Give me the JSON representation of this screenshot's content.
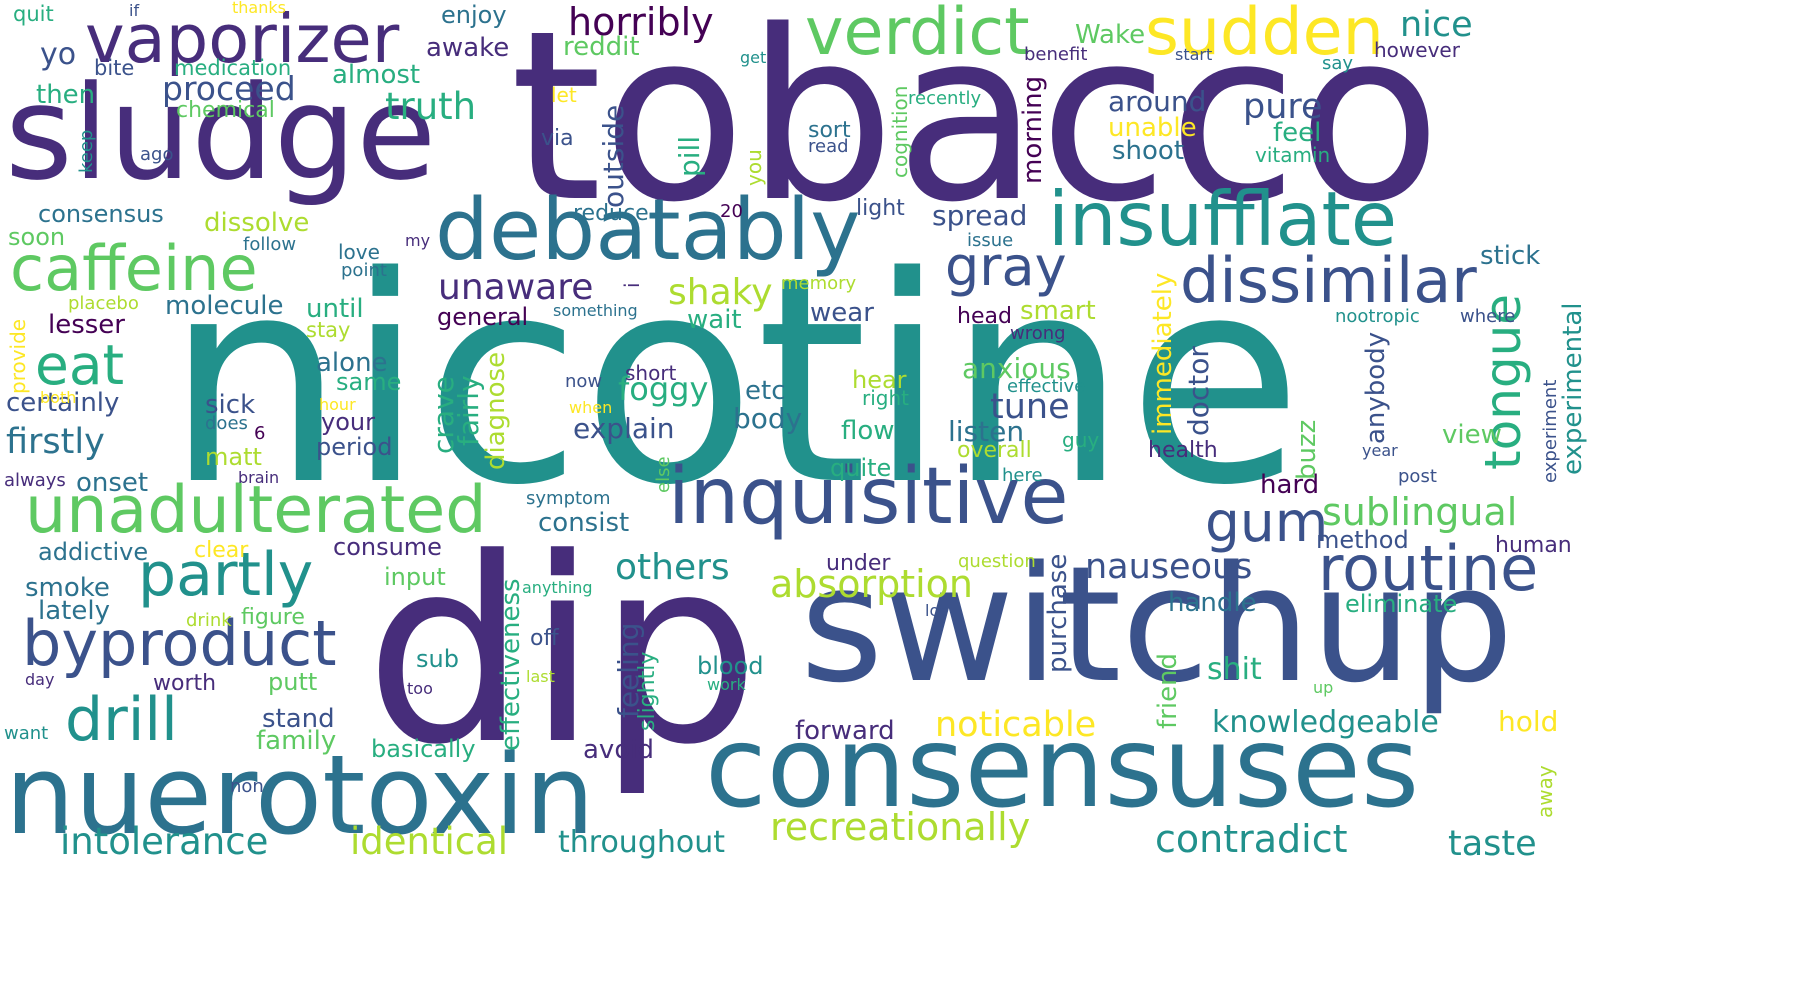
{
  "palette": {
    "c1": "#440154",
    "c2": "#472d7b",
    "c3": "#3b528b",
    "c4": "#2c728e",
    "c5": "#21918c",
    "c6": "#28ae80",
    "c7": "#5ec962",
    "c8": "#addc30",
    "c9": "#fde725"
  },
  "words": [
    {
      "text": "tobacco",
      "color": "c2"
    },
    {
      "text": "nicotine",
      "color": "c5"
    },
    {
      "text": "dip",
      "color": "c2"
    },
    {
      "text": "switchup",
      "color": "c3"
    },
    {
      "text": "consensuses",
      "color": "c4"
    },
    {
      "text": "nuerotoxin",
      "color": "c4"
    },
    {
      "text": "sludge",
      "color": "c2"
    },
    {
      "text": "debatably",
      "color": "c4"
    },
    {
      "text": "vaporizer",
      "color": "c2"
    },
    {
      "text": "inquisitive",
      "color": "c3"
    },
    {
      "text": "insufflate",
      "color": "c5"
    },
    {
      "text": "unadulterated",
      "color": "c7"
    },
    {
      "text": "verdict",
      "color": "c7"
    },
    {
      "text": "sudden",
      "color": "c9"
    },
    {
      "text": "caffeine",
      "color": "c7"
    },
    {
      "text": "dissimilar",
      "color": "c3"
    },
    {
      "text": "routine",
      "color": "c3"
    },
    {
      "text": "byproduct",
      "color": "c3"
    },
    {
      "text": "partly",
      "color": "c5"
    },
    {
      "text": "drill",
      "color": "c5"
    },
    {
      "text": "tongue",
      "color": "c6"
    },
    {
      "text": "gum",
      "color": "c3"
    },
    {
      "text": "gray",
      "color": "c3"
    },
    {
      "text": "eat",
      "color": "c6"
    },
    {
      "text": "recreationally",
      "color": "c8"
    },
    {
      "text": "absorption",
      "color": "c8"
    },
    {
      "text": "contradict",
      "color": "c5"
    },
    {
      "text": "sublingual",
      "color": "c7"
    },
    {
      "text": "identical",
      "color": "c8"
    },
    {
      "text": "intolerance",
      "color": "c5"
    },
    {
      "text": "horribly",
      "color": "c1"
    },
    {
      "text": "unaware",
      "color": "c2"
    },
    {
      "text": "shaky",
      "color": "c8"
    },
    {
      "text": "others",
      "color": "c5"
    },
    {
      "text": "nauseous",
      "color": "c3"
    },
    {
      "text": "noticable",
      "color": "c9"
    },
    {
      "text": "taste",
      "color": "c5"
    },
    {
      "text": "knowledgeable",
      "color": "c5"
    },
    {
      "text": "throughout",
      "color": "c5"
    },
    {
      "text": "truth",
      "color": "c6"
    },
    {
      "text": "proceed",
      "color": "c3"
    },
    {
      "text": "pure",
      "color": "c3"
    },
    {
      "text": "nice",
      "color": "c5"
    },
    {
      "text": "firstly",
      "color": "c4"
    },
    {
      "text": "experimental",
      "color": "c5"
    },
    {
      "text": "tune",
      "color": "c3"
    },
    {
      "text": "certainly",
      "color": "c3"
    },
    {
      "text": "explain",
      "color": "c3"
    },
    {
      "text": "lesser",
      "color": "c1"
    },
    {
      "text": "molecule",
      "color": "c4"
    },
    {
      "text": "spread",
      "color": "c3"
    },
    {
      "text": "anxious",
      "color": "c7"
    },
    {
      "text": "listen",
      "color": "c4"
    },
    {
      "text": "foggy",
      "color": "c6"
    },
    {
      "text": "body",
      "color": "c4"
    },
    {
      "text": "handle",
      "color": "c4"
    },
    {
      "text": "eliminate",
      "color": "c6"
    },
    {
      "text": "consume",
      "color": "c2"
    },
    {
      "text": "consist",
      "color": "c4"
    },
    {
      "text": "smoke",
      "color": "c4"
    },
    {
      "text": "lately",
      "color": "c4"
    },
    {
      "text": "addictive",
      "color": "c4"
    },
    {
      "text": "onset",
      "color": "c4"
    },
    {
      "text": "consensus",
      "color": "c4"
    },
    {
      "text": "dissolve",
      "color": "c8"
    },
    {
      "text": "around",
      "color": "c3"
    },
    {
      "text": "shoot",
      "color": "c4"
    },
    {
      "text": "unable",
      "color": "c9"
    },
    {
      "text": "feel",
      "color": "c6"
    },
    {
      "text": "almost",
      "color": "c6"
    },
    {
      "text": "awake",
      "color": "c2"
    },
    {
      "text": "enjoy",
      "color": "c4"
    },
    {
      "text": "Wake",
      "color": "c7"
    },
    {
      "text": "stick",
      "color": "c4"
    },
    {
      "text": "smart",
      "color": "c8"
    },
    {
      "text": "general",
      "color": "c1"
    },
    {
      "text": "wait",
      "color": "c6"
    },
    {
      "text": "until",
      "color": "c6"
    },
    {
      "text": "wear",
      "color": "c3"
    },
    {
      "text": "head",
      "color": "c1"
    },
    {
      "text": "view",
      "color": "c7"
    },
    {
      "text": "hard",
      "color": "c1"
    },
    {
      "text": "method",
      "color": "c3"
    },
    {
      "text": "buzz",
      "color": "c7"
    },
    {
      "text": "alone",
      "color": "c4"
    },
    {
      "text": "same",
      "color": "c6"
    },
    {
      "text": "sick",
      "color": "c3"
    },
    {
      "text": "your",
      "color": "c2"
    },
    {
      "text": "period",
      "color": "c3"
    },
    {
      "text": "matt",
      "color": "c8"
    },
    {
      "text": "flow",
      "color": "c6"
    },
    {
      "text": "quite",
      "color": "c6"
    },
    {
      "text": "overall",
      "color": "c8"
    },
    {
      "text": "etc",
      "color": "c4"
    },
    {
      "text": "yo",
      "color": "c3"
    },
    {
      "text": "reddit",
      "color": "c7"
    },
    {
      "text": "then",
      "color": "c6"
    },
    {
      "text": "chemical",
      "color": "c7"
    },
    {
      "text": "medication",
      "color": "c6"
    },
    {
      "text": "bite",
      "color": "c3"
    },
    {
      "text": "quit",
      "color": "c6"
    },
    {
      "text": "soon",
      "color": "c7"
    },
    {
      "text": "stay",
      "color": "c8"
    },
    {
      "text": "placebo",
      "color": "c8"
    },
    {
      "text": "love",
      "color": "c4"
    },
    {
      "text": "point",
      "color": "c4"
    },
    {
      "text": "input",
      "color": "c7"
    },
    {
      "text": "clear",
      "color": "c9"
    },
    {
      "text": "figure",
      "color": "c7"
    },
    {
      "text": "drink",
      "color": "c8"
    },
    {
      "text": "worth",
      "color": "c2"
    },
    {
      "text": "putt",
      "color": "c7"
    },
    {
      "text": "stand",
      "color": "c3"
    },
    {
      "text": "family",
      "color": "c7"
    },
    {
      "text": "basically",
      "color": "c6"
    },
    {
      "text": "forward",
      "color": "c2"
    },
    {
      "text": "avoid",
      "color": "c2"
    },
    {
      "text": "under",
      "color": "c2"
    },
    {
      "text": "sub",
      "color": "c5"
    },
    {
      "text": "off",
      "color": "c3"
    },
    {
      "text": "blood",
      "color": "c5"
    },
    {
      "text": "work",
      "color": "c6"
    },
    {
      "text": "shit",
      "color": "c6"
    },
    {
      "text": "hold",
      "color": "c9"
    },
    {
      "text": "health",
      "color": "c2"
    },
    {
      "text": "human",
      "color": "c2"
    },
    {
      "text": "hear",
      "color": "c8"
    },
    {
      "text": "right",
      "color": "c6"
    },
    {
      "text": "guy",
      "color": "c6"
    },
    {
      "text": "here",
      "color": "c5"
    },
    {
      "text": "short",
      "color": "c2"
    },
    {
      "text": "now",
      "color": "c3"
    },
    {
      "text": "when",
      "color": "c9"
    },
    {
      "text": "hour",
      "color": "c9"
    },
    {
      "text": "does",
      "color": "c4"
    },
    {
      "text": "brain",
      "color": "c2"
    },
    {
      "text": "always",
      "color": "c2"
    },
    {
      "text": "follow",
      "color": "c4"
    },
    {
      "text": "my",
      "color": "c2"
    },
    {
      "text": "issue",
      "color": "c4"
    },
    {
      "text": "light",
      "color": "c3"
    },
    {
      "text": "reduce",
      "color": "c4"
    },
    {
      "text": "memory",
      "color": "c8"
    },
    {
      "text": "something",
      "color": "c4"
    },
    {
      "text": "wrong",
      "color": "c2"
    },
    {
      "text": "effective",
      "color": "c5"
    },
    {
      "text": "nootropic",
      "color": "c5"
    },
    {
      "text": "where",
      "color": "c3"
    },
    {
      "text": "post",
      "color": "c3"
    },
    {
      "text": "year",
      "color": "c3"
    },
    {
      "text": "symptom",
      "color": "c4"
    },
    {
      "text": "anything",
      "color": "c6"
    },
    {
      "text": "question",
      "color": "c8"
    },
    {
      "text": "lot",
      "color": "c3"
    },
    {
      "text": "last",
      "color": "c8"
    },
    {
      "text": "too",
      "color": "c2"
    },
    {
      "text": "up",
      "color": "c7"
    },
    {
      "text": "want",
      "color": "c5"
    },
    {
      "text": "non",
      "color": "c3"
    },
    {
      "text": "day",
      "color": "c2"
    },
    {
      "text": "both",
      "color": "c9"
    },
    {
      "text": "6",
      "color": "c1"
    },
    {
      "text": "20",
      "color": "c1"
    },
    {
      "text": "sort",
      "color": "c4"
    },
    {
      "text": "read",
      "color": "c3"
    },
    {
      "text": "via",
      "color": "c3"
    },
    {
      "text": "let",
      "color": "c9"
    },
    {
      "text": "ago",
      "color": "c3"
    },
    {
      "text": "if",
      "color": "c3"
    },
    {
      "text": "thanks",
      "color": "c9"
    },
    {
      "text": "get",
      "color": "c5"
    },
    {
      "text": "benefit",
      "color": "c2"
    },
    {
      "text": "start",
      "color": "c3"
    },
    {
      "text": "say",
      "color": "c5"
    },
    {
      "text": "however",
      "color": "c2"
    },
    {
      "text": "recently",
      "color": "c6"
    },
    {
      "text": "vitamin",
      "color": "c6"
    },
    {
      "text": "i",
      "color": "c2"
    },
    {
      "text": "outside",
      "color": "c3"
    },
    {
      "text": "pill",
      "color": "c6"
    },
    {
      "text": "you",
      "color": "c8"
    },
    {
      "text": "cognition",
      "color": "c7"
    },
    {
      "text": "morning",
      "color": "c1"
    },
    {
      "text": "keep",
      "color": "c5"
    },
    {
      "text": "provide",
      "color": "c9"
    },
    {
      "text": "crave",
      "color": "c6"
    },
    {
      "text": "fairly",
      "color": "c6"
    },
    {
      "text": "diagnose",
      "color": "c8"
    },
    {
      "text": "effectiveness",
      "color": "c6"
    },
    {
      "text": "feeling",
      "color": "c3"
    },
    {
      "text": "slightly",
      "color": "c6"
    },
    {
      "text": "else",
      "color": "c7"
    },
    {
      "text": "purchase",
      "color": "c3"
    },
    {
      "text": "friend",
      "color": "c7"
    },
    {
      "text": "immediately",
      "color": "c9"
    },
    {
      "text": "doctor",
      "color": "c3"
    },
    {
      "text": "anybody",
      "color": "c3"
    },
    {
      "text": "experiment",
      "color": "c3"
    },
    {
      "text": "away",
      "color": "c8"
    }
  ]
}
